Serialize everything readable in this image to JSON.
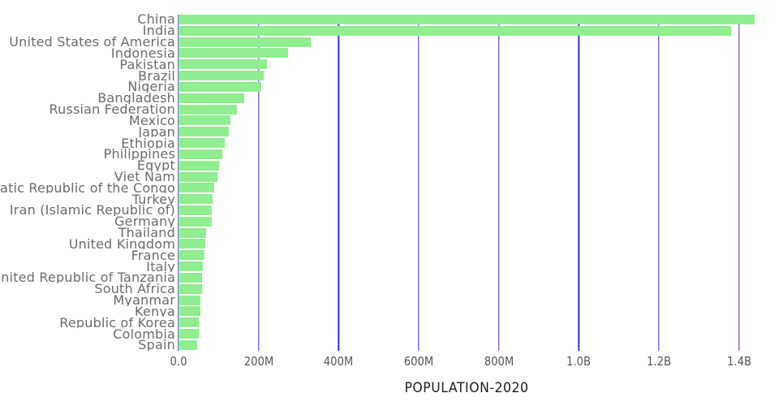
{
  "chart_data": {
    "type": "bar",
    "orientation": "horizontal",
    "xlabel": "POPULATION-2020",
    "ylabel": "",
    "title": "",
    "categories": [
      "China",
      "India",
      "United States of America",
      "Indonesia",
      "Pakistan",
      "Brazil",
      "Nigeria",
      "Bangladesh",
      "Russian Federation",
      "Mexico",
      "Japan",
      "Ethiopia",
      "Philippines",
      "Egypt",
      "Viet Nam",
      "Democratic Republic of the Congo",
      "Turkey",
      "Iran (Islamic Republic of)",
      "Germany",
      "Thailand",
      "United Kingdom",
      "France",
      "Italy",
      "United Republic of Tanzania",
      "South Africa",
      "Myanmar",
      "Kenya",
      "Republic of Korea",
      "Colombia",
      "Spain"
    ],
    "values_millions": [
      1439,
      1380,
      331,
      273.5,
      220.9,
      212.6,
      206.1,
      164.7,
      145.9,
      128.9,
      126.5,
      115,
      109.6,
      102.3,
      97.3,
      89.6,
      84.3,
      84,
      83.8,
      69.8,
      67.9,
      65.3,
      60.5,
      59.7,
      59.3,
      54.4,
      53.8,
      51.3,
      50.9,
      46.8
    ],
    "x_ticks": [
      "0.0",
      "200M",
      "400M",
      "600M",
      "800M",
      "1.0B",
      "1.2B",
      "1.4B"
    ],
    "x_tick_values_millions": [
      0,
      200,
      400,
      600,
      800,
      1000,
      1200,
      1400
    ],
    "xlim_millions": [
      0,
      1500
    ],
    "grid": "vertical",
    "legend": "none",
    "colors": {
      "bar": "#90EE90",
      "gridline": "#3030D6",
      "category_label": "#6B6B6B",
      "tick_label": "#555555",
      "axis_title": "#1C1C1C",
      "background": "#FFFFFF"
    }
  }
}
